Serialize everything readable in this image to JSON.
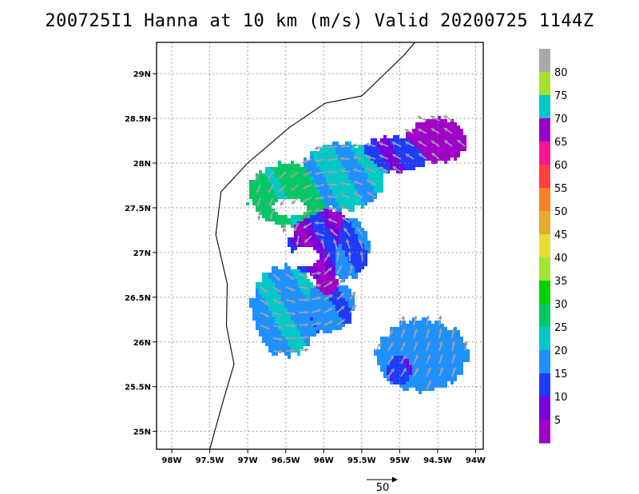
{
  "chart_data": {
    "type": "vector-field map",
    "title": "200725I1 Hanna at 10 km (m/s) Valid 20200725 1144Z",
    "x_ticks": [
      "98W",
      "97.5W",
      "97W",
      "96.5W",
      "96W",
      "95.5W",
      "95W",
      "94.5W",
      "94W"
    ],
    "y_ticks": [
      "29N",
      "28.5N",
      "28N",
      "27.5N",
      "27N",
      "26.5N",
      "26N",
      "25.5N",
      "25N"
    ],
    "x_tick_values": [
      -98,
      -97.5,
      -97,
      -96.5,
      -96,
      -95.5,
      -95,
      -94.5,
      -94
    ],
    "y_tick_values": [
      29,
      28.5,
      28,
      27.5,
      27,
      26.5,
      26,
      25.5,
      25
    ],
    "xlim": [
      -98.2,
      -93.9
    ],
    "ylim": [
      24.8,
      29.35
    ],
    "grid": true,
    "colorbar": {
      "labels": [
        "80",
        "75",
        "70",
        "65",
        "60",
        "55",
        "50",
        "45",
        "40",
        "35",
        "30",
        "25",
        "20",
        "15",
        "10",
        "5"
      ],
      "colors": [
        "#a9a9a9",
        "#a4e22e",
        "#00c8c8",
        "#9600c8",
        "#ff1493",
        "#ff4040",
        "#f5822a",
        "#e6aa2d",
        "#e6dc32",
        "#a0e632",
        "#00d200",
        "#00c864",
        "#00c8c8",
        "#1e90ff",
        "#1e3cff",
        "#7800dc",
        "#a000c8"
      ]
    },
    "reference_vector": {
      "label": "50",
      "speed": 50
    },
    "coastline_lonlat": [
      [
        -94.8,
        29.35
      ],
      [
        -94.95,
        29.2
      ],
      [
        -95.5,
        28.75
      ],
      [
        -95.98,
        28.67
      ],
      [
        -96.45,
        28.4
      ],
      [
        -97.0,
        28.0
      ],
      [
        -97.35,
        27.68
      ],
      [
        -97.42,
        27.2
      ],
      [
        -97.27,
        26.65
      ],
      [
        -97.28,
        26.18
      ],
      [
        -97.18,
        25.75
      ],
      [
        -97.32,
        25.35
      ],
      [
        -97.5,
        24.8
      ]
    ],
    "wind_regions": [
      {
        "lon": -96.45,
        "lat": 27.65,
        "rlon": 0.55,
        "rlat": 0.35,
        "speed": 24
      },
      {
        "lon": -95.75,
        "lat": 27.85,
        "rlon": 0.55,
        "rlat": 0.38,
        "speed": 18
      },
      {
        "lon": -95.05,
        "lat": 28.1,
        "rlon": 0.45,
        "rlat": 0.2,
        "speed": 11
      },
      {
        "lon": -94.5,
        "lat": 28.25,
        "rlon": 0.4,
        "rlat": 0.25,
        "speed": 5
      },
      {
        "lon": -96.0,
        "lat": 27.1,
        "rlon": 0.45,
        "rlat": 0.4,
        "speed": 9
      },
      {
        "lon": -95.7,
        "lat": 27.05,
        "rlon": 0.3,
        "rlat": 0.35,
        "speed": 13
      },
      {
        "lon": -96.5,
        "lat": 26.35,
        "rlon": 0.45,
        "rlat": 0.5,
        "speed": 17
      },
      {
        "lon": -95.95,
        "lat": 26.4,
        "rlon": 0.35,
        "rlat": 0.3,
        "speed": 14
      },
      {
        "lon": -95.95,
        "lat": 26.6,
        "rlon": 0.18,
        "rlat": 0.18,
        "speed": 5
      },
      {
        "lon": -94.7,
        "lat": 25.85,
        "rlon": 0.6,
        "rlat": 0.4,
        "speed": 15
      },
      {
        "lon": -94.95,
        "lat": 25.75,
        "rlon": 0.25,
        "rlat": 0.25,
        "speed": 10
      }
    ]
  }
}
